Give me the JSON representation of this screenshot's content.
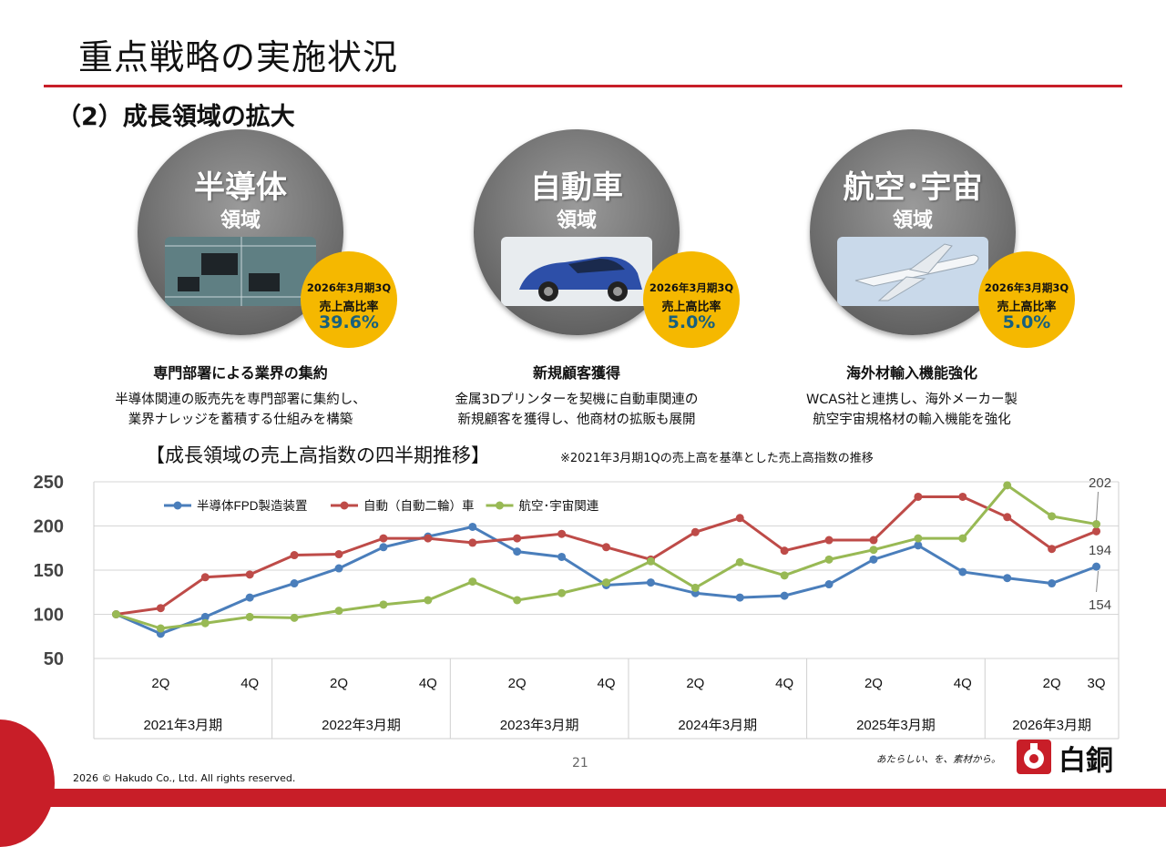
{
  "page": {
    "title": "重点戦略の実施状況",
    "subtitle": "（2）成長領域の拡大"
  },
  "areas": [
    {
      "name_big": "半導体",
      "name_small": "領域",
      "badge_line1": "2026年3月期3Q",
      "badge_line2": "売上高比率",
      "badge_value": "39.6%",
      "heading": "専門部署による業界の集約",
      "desc1": "半導体関連の販売先を専門部署に集約し、",
      "desc2": "業界ナレッジを蓄積する仕組みを構築",
      "photo_icon": "circuit-board-icon"
    },
    {
      "name_big": "自動車",
      "name_small": "領域",
      "badge_line1": "2026年3月期3Q",
      "badge_line2": "売上高比率",
      "badge_value": "5.0%",
      "heading": "新規顧客獲得",
      "desc1": "金属3Dプリンターを契機に自動車関連の",
      "desc2": "新規顧客を獲得し、他商材の拡販も展開",
      "photo_icon": "car-icon"
    },
    {
      "name_big": "航空･宇宙",
      "name_small": "領域",
      "badge_line1": "2026年3月期3Q",
      "badge_line2": "売上高比率",
      "badge_value": "5.0%",
      "heading": "海外材輸入機能強化",
      "desc1": "WCAS社と連携し、海外メーカー製",
      "desc2": "航空宇宙規格材の輸入機能を強化",
      "photo_icon": "airplane-icon"
    }
  ],
  "chart_title": "【成長領域の売上高指数の四半期推移】",
  "chart_note": "※2021年3月期1Qの売上高を基準とした売上高指数の推移",
  "chart_data": {
    "type": "line",
    "x_tick_labels": [
      "",
      "2Q",
      "",
      "4Q",
      "",
      "2Q",
      "",
      "4Q",
      "",
      "2Q",
      "",
      "4Q",
      "",
      "2Q",
      "",
      "4Q",
      "",
      "2Q",
      "",
      "4Q",
      "",
      "2Q",
      "3Q"
    ],
    "year_groups": [
      {
        "label": "2021年3月期",
        "quarters": 4
      },
      {
        "label": "2022年3月期",
        "quarters": 4
      },
      {
        "label": "2023年3月期",
        "quarters": 4
      },
      {
        "label": "2024年3月期",
        "quarters": 4
      },
      {
        "label": "2025年3月期",
        "quarters": 4
      },
      {
        "label": "2026年3月期",
        "quarters": 3
      }
    ],
    "ylim": [
      50,
      250
    ],
    "yticks": [
      50,
      100,
      150,
      200,
      250
    ],
    "grid": "horizontal",
    "legend": "top-left",
    "series": [
      {
        "name": "半導体FPD製造装置",
        "color": "#4a7ebb",
        "values": [
          100,
          78,
          97,
          119,
          135,
          152,
          176,
          188,
          199,
          171,
          165,
          133,
          136,
          124,
          119,
          121,
          134,
          162,
          178,
          148,
          141,
          135,
          154
        ]
      },
      {
        "name": "自動（自動二輪）車",
        "color": "#be4b48",
        "values": [
          100,
          107,
          142,
          145,
          167,
          168,
          186,
          186,
          181,
          186,
          191,
          176,
          162,
          193,
          209,
          172,
          184,
          184,
          233,
          233,
          210,
          174,
          194
        ]
      },
      {
        "name": "航空･宇宙関連",
        "color": "#98b954",
        "values": [
          100,
          84,
          90,
          97,
          96,
          104,
          111,
          116,
          137,
          116,
          124,
          136,
          160,
          130,
          159,
          144,
          162,
          173,
          186,
          186,
          246,
          211,
          202
        ]
      }
    ],
    "end_labels": [
      "154",
      "194",
      "202"
    ]
  },
  "footer": {
    "copyright": "2026 © Hakudo Co., Ltd. All rights reserved.",
    "page_number": "21",
    "tagline": "あたらしい、を、素材から。",
    "logo_text": "白銅"
  }
}
